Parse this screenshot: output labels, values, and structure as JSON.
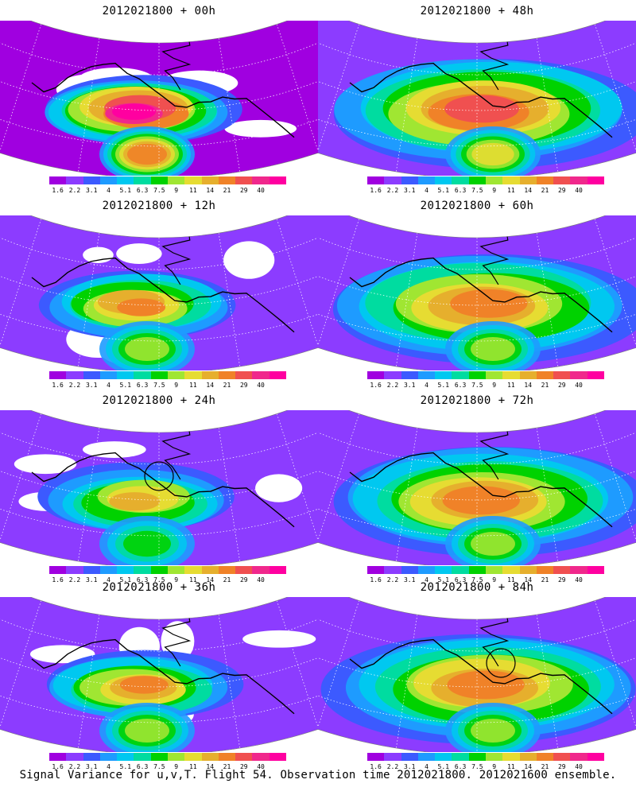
{
  "panels": [
    {
      "title": "2012021800 + 00h"
    },
    {
      "title": "2012021800 + 48h"
    },
    {
      "title": "2012021800 + 12h"
    },
    {
      "title": "2012021800 + 60h"
    },
    {
      "title": "2012021800 + 24h"
    },
    {
      "title": "2012021800 + 72h"
    },
    {
      "title": "2012021800 + 36h"
    },
    {
      "title": "2012021800 + 84h"
    }
  ],
  "colorbar": {
    "labels": [
      "1.6",
      "2.2",
      "3.1",
      "4",
      "5.1",
      "6.3",
      "7.5",
      "9",
      "11",
      "14",
      "21",
      "29",
      "40"
    ],
    "colors": [
      "#a000e0",
      "#8c3cff",
      "#3c5aff",
      "#1e9bff",
      "#00c8f0",
      "#00dca0",
      "#00d200",
      "#a0e632",
      "#e6dc32",
      "#e6af2d",
      "#f08228",
      "#f05050",
      "#f0288c",
      "#ff00a0"
    ]
  },
  "caption": "Signal Variance for u,v,T. Flight 54. Observation time 2012021800. 2012021600 ensemble."
}
